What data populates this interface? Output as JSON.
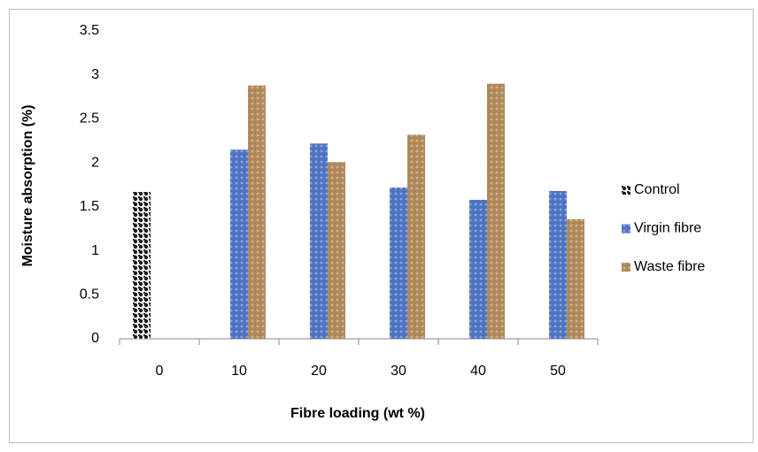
{
  "chart_data": {
    "type": "bar",
    "x_label": "Fibre loading (wt %)",
    "y_label": "Moisture absorption (%)",
    "categories": [
      "0",
      "10",
      "20",
      "30",
      "40",
      "50"
    ],
    "series": [
      {
        "name": "Control",
        "color": "#1a1a1a",
        "values": [
          1.67,
          null,
          null,
          null,
          null,
          null
        ]
      },
      {
        "name": "Virgin fibre",
        "color": "#4f74c4",
        "values": [
          null,
          2.15,
          2.22,
          1.72,
          1.58,
          1.68
        ]
      },
      {
        "name": "Waste fibre",
        "color": "#b08a5a",
        "values": [
          null,
          2.88,
          2.01,
          2.32,
          2.9,
          1.36
        ]
      }
    ],
    "ylim": [
      0,
      3.5
    ],
    "yticks": [
      0,
      0.5,
      1,
      1.5,
      2,
      2.5,
      3,
      3.5
    ],
    "grid": false,
    "legend": "right"
  }
}
